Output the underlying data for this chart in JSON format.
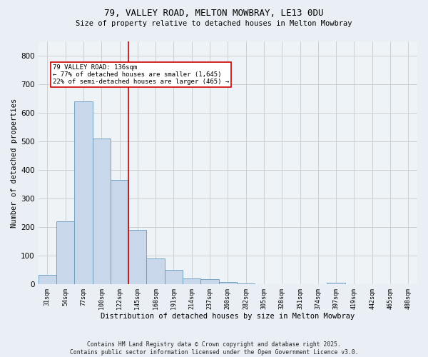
{
  "title1": "79, VALLEY ROAD, MELTON MOWBRAY, LE13 0DU",
  "title2": "Size of property relative to detached houses in Melton Mowbray",
  "xlabel": "Distribution of detached houses by size in Melton Mowbray",
  "ylabel": "Number of detached properties",
  "bar_color": "#c8d8ea",
  "bar_edge_color": "#6699bb",
  "categories": [
    "31sqm",
    "54sqm",
    "77sqm",
    "100sqm",
    "122sqm",
    "145sqm",
    "168sqm",
    "191sqm",
    "214sqm",
    "237sqm",
    "260sqm",
    "282sqm",
    "305sqm",
    "328sqm",
    "351sqm",
    "374sqm",
    "397sqm",
    "419sqm",
    "442sqm",
    "465sqm",
    "488sqm"
  ],
  "values": [
    33,
    220,
    640,
    510,
    365,
    190,
    90,
    52,
    22,
    18,
    8,
    3,
    2,
    1,
    0,
    0,
    5,
    0,
    0,
    0,
    0
  ],
  "ylim": [
    0,
    850
  ],
  "yticks": [
    0,
    100,
    200,
    300,
    400,
    500,
    600,
    700,
    800
  ],
  "vline_x": 4.5,
  "vline_color": "#cc0000",
  "annotation_text": "79 VALLEY ROAD: 136sqm\n← 77% of detached houses are smaller (1,645)\n22% of semi-detached houses are larger (465) →",
  "footer": "Contains HM Land Registry data © Crown copyright and database right 2025.\nContains public sector information licensed under the Open Government Licence v3.0.",
  "bg_color": "#eaeff5",
  "plot_bg_color": "#eef3f8"
}
